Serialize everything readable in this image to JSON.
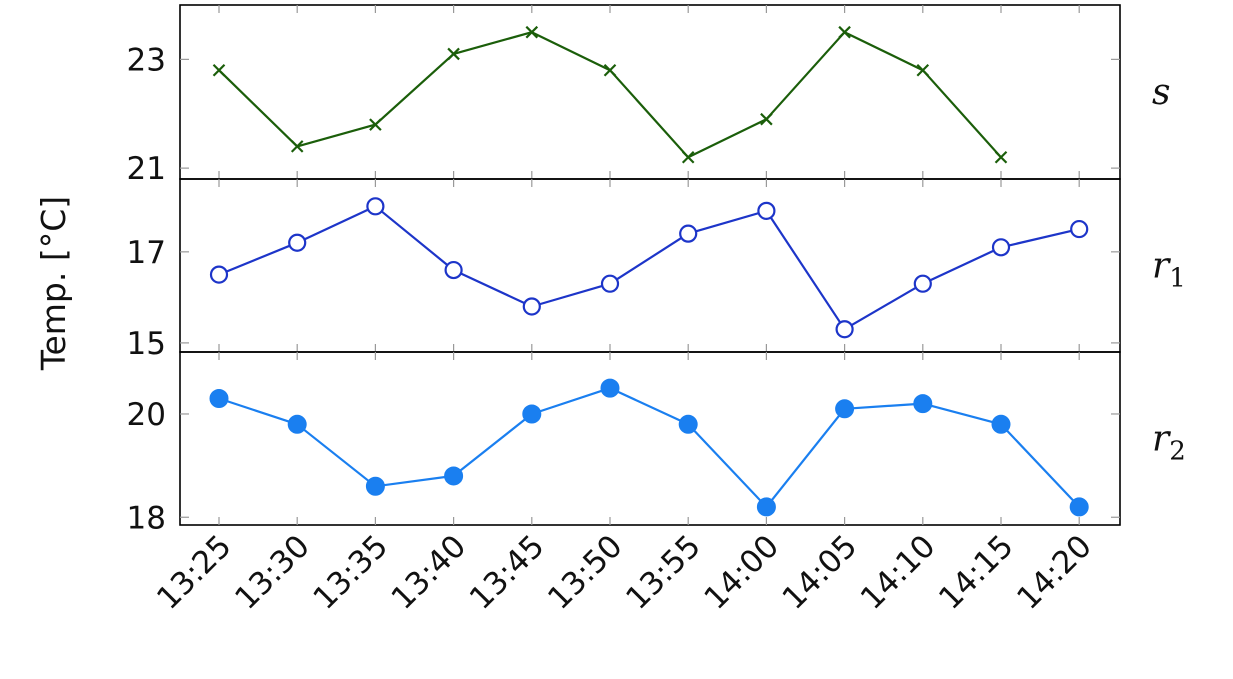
{
  "chart_data": {
    "type": "line",
    "ylabel": "Temp. [°C]",
    "x": [
      "13:25",
      "13:30",
      "13:35",
      "13:40",
      "13:45",
      "13:50",
      "13:55",
      "14:00",
      "14:05",
      "14:10",
      "14:15",
      "14:20"
    ],
    "grid": false,
    "panels": [
      {
        "name": "s",
        "subscript": "",
        "color": "#1b5e0a",
        "marker": "cross",
        "yticks": [
          21,
          23
        ],
        "ylim": [
          20.8,
          24.0
        ],
        "values": [
          22.8,
          21.4,
          21.8,
          23.1,
          23.5,
          22.8,
          21.2,
          21.9,
          23.5,
          22.8,
          21.2,
          null
        ]
      },
      {
        "name": "r",
        "subscript": "1",
        "color": "#1d35c9",
        "marker": "circle-open",
        "yticks": [
          15,
          17
        ],
        "ylim": [
          14.8,
          18.6
        ],
        "values": [
          16.5,
          17.2,
          18.0,
          16.6,
          15.8,
          16.3,
          17.4,
          17.9,
          15.3,
          16.3,
          17.1,
          17.5
        ]
      },
      {
        "name": "r",
        "subscript": "2",
        "color": "#1a7ff0",
        "marker": "circle-filled",
        "yticks": [
          18,
          20
        ],
        "ylim": [
          17.85,
          21.2
        ],
        "values": [
          20.3,
          19.8,
          18.6,
          18.8,
          20.0,
          20.5,
          19.8,
          18.2,
          20.1,
          20.2,
          19.8,
          18.2
        ]
      }
    ]
  }
}
